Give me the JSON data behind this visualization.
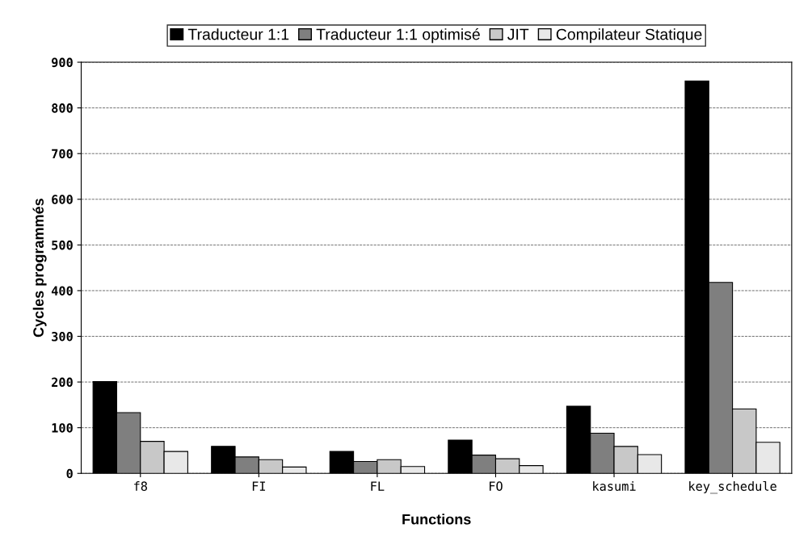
{
  "chart_data": {
    "type": "bar",
    "xlabel": "Functions",
    "ylabel": "Cycles programmés",
    "categories": [
      "f8",
      "FI",
      "FL",
      "FO",
      "kasumi",
      "key_schedule"
    ],
    "series": [
      {
        "name": "Traducteur 1:1",
        "color": "#000000",
        "values": [
          201,
          59,
          48,
          73,
          147,
          859
        ]
      },
      {
        "name": "Traducteur 1:1 optimisé",
        "color": "#7f7f7f",
        "values": [
          133,
          36,
          26,
          40,
          88,
          418
        ]
      },
      {
        "name": "JIT",
        "color": "#c8c8c8",
        "values": [
          70,
          30,
          30,
          32,
          59,
          141
        ]
      },
      {
        "name": "Compilateur Statique",
        "color": "#e8e8e8",
        "values": [
          48,
          14,
          15,
          17,
          41,
          68
        ]
      }
    ],
    "ylim": [
      0,
      900
    ],
    "yticks": [
      0,
      100,
      200,
      300,
      400,
      500,
      600,
      700,
      800,
      900
    ],
    "grid": "y",
    "legend": "top"
  }
}
